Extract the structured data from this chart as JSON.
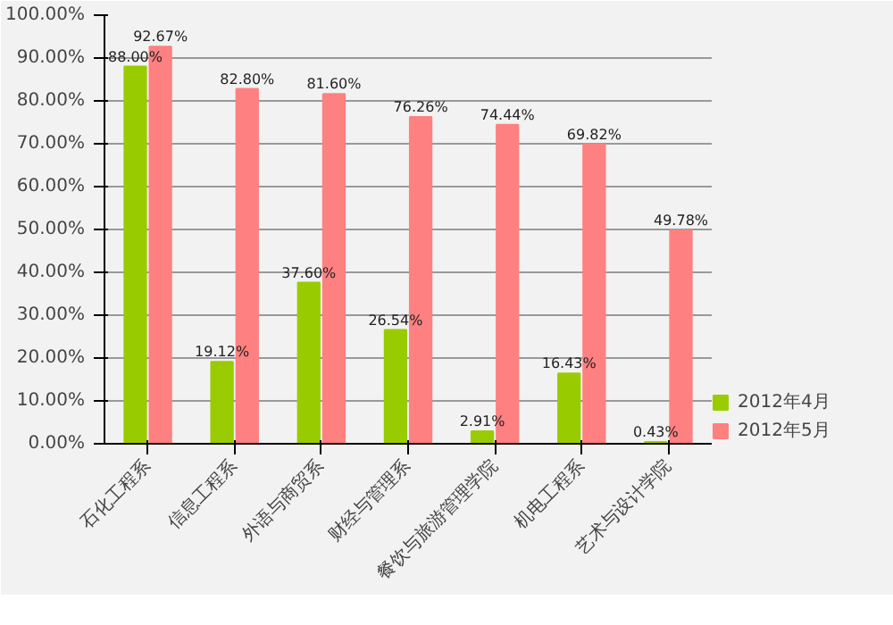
{
  "chart_data": {
    "type": "bar",
    "categories": [
      "石化工程系",
      "信息工程系",
      "外语与商贸系",
      "财经与管理系",
      "餐饮与旅游管理学院",
      "机电工程系",
      "艺术与设计学院"
    ],
    "series": [
      {
        "name": "2012年4月",
        "color": "#99cc00",
        "values": [
          88.0,
          19.12,
          37.6,
          26.54,
          2.91,
          16.43,
          0.43
        ],
        "value_labels": [
          "88.00%",
          "19.12%",
          "37.60%",
          "26.54%",
          "2.91%",
          "16.43%",
          "0.43%"
        ]
      },
      {
        "name": "2012年5月",
        "color": "#ff8080",
        "values": [
          92.67,
          82.8,
          81.6,
          76.26,
          74.44,
          69.82,
          49.78
        ],
        "value_labels": [
          "92.67%",
          "82.80%",
          "81.60%",
          "76.26%",
          "74.44%",
          "69.82%",
          "49.78%"
        ]
      }
    ],
    "ylim": [
      0,
      100
    ],
    "yticks": [
      {
        "value": 0,
        "label": "0.00%"
      },
      {
        "value": 10,
        "label": "10.00%"
      },
      {
        "value": 20,
        "label": "20.00%"
      },
      {
        "value": 30,
        "label": "30.00%"
      },
      {
        "value": 40,
        "label": "40.00%"
      },
      {
        "value": 50,
        "label": "50.00%"
      },
      {
        "value": 60,
        "label": "60.00%"
      },
      {
        "value": 70,
        "label": "70.00%"
      },
      {
        "value": 80,
        "label": "80.00%"
      },
      {
        "value": 90,
        "label": "90.00%"
      },
      {
        "value": 100,
        "label": "100.00%"
      }
    ],
    "grid": "y",
    "legend": "bottom right"
  }
}
